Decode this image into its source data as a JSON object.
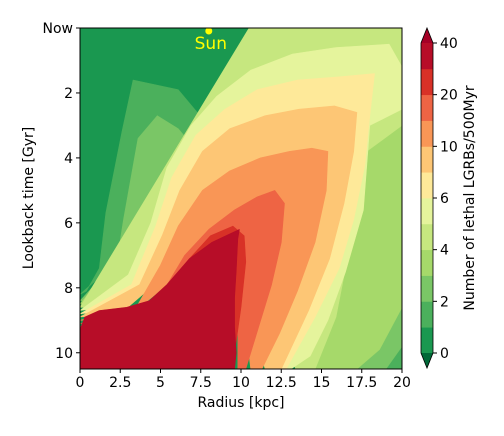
{
  "chart_data": {
    "type": "heatmap",
    "title": "",
    "xlabel": "Radius [kpc]",
    "ylabel": "Lookback time [Gyr]",
    "xlim": [
      0,
      20
    ],
    "ylim": [
      10.5,
      0
    ],
    "x_ticks": [
      {
        "value": 0,
        "label": "0"
      },
      {
        "value": 2.5,
        "label": "2.5"
      },
      {
        "value": 5,
        "label": "5"
      },
      {
        "value": 7.5,
        "label": "7.5"
      },
      {
        "value": 10,
        "label": "10"
      },
      {
        "value": 12.5,
        "label": "12.5"
      },
      {
        "value": 15,
        "label": "15"
      },
      {
        "value": 17.5,
        "label": "17.5"
      },
      {
        "value": 20,
        "label": "20"
      }
    ],
    "y_ticks": [
      {
        "value": 0,
        "label": "Now"
      },
      {
        "value": 2,
        "label": "2"
      },
      {
        "value": 4,
        "label": "4"
      },
      {
        "value": 6,
        "label": "6"
      },
      {
        "value": 8,
        "label": "8"
      },
      {
        "value": 10,
        "label": "10"
      }
    ],
    "colorbar": {
      "label": "Number of lethal LGRBs/500Myr",
      "levels": [
        0,
        1,
        2,
        3,
        4,
        5,
        6,
        8,
        10,
        15,
        20,
        30,
        40
      ],
      "colors": [
        "#1a9850",
        "#4bb05c",
        "#7ac666",
        "#a6d96a",
        "#c6e77f",
        "#e5f49c",
        "#fee999",
        "#fdc675",
        "#f99656",
        "#ee6444",
        "#d83127",
        "#b70d28"
      ],
      "ticks": [
        {
          "value": 0,
          "label": "0"
        },
        {
          "value": 2,
          "label": "2"
        },
        {
          "value": 4,
          "label": "4"
        },
        {
          "value": 6,
          "label": "6"
        },
        {
          "value": 10,
          "label": "10"
        },
        {
          "value": 20,
          "label": "20"
        },
        {
          "value": 40,
          "label": "40"
        }
      ]
    },
    "contours": [
      {
        "level": 1,
        "color": "#4bb05c",
        "points": [
          [
            18.8,
            0
          ],
          [
            20,
            0
          ],
          [
            20,
            10.5
          ],
          [
            18.8,
            10.5
          ],
          [
            16.5,
            9.8
          ],
          [
            14.6,
            8.4
          ],
          [
            12.7,
            6.7
          ],
          [
            10.8,
            5
          ],
          [
            8.3,
            3.2
          ],
          [
            6.1,
            1.9
          ],
          [
            3.3,
            1.6
          ],
          [
            2.6,
            3.2
          ],
          [
            1.6,
            5.7
          ],
          [
            1.2,
            7.4
          ],
          [
            0.4,
            8.1
          ],
          [
            0,
            8.2
          ]
        ]
      },
      {
        "level": 2,
        "color": "#7ac666",
        "points": [
          [
            15.6,
            0
          ],
          [
            20,
            0
          ],
          [
            20,
            9.8
          ],
          [
            19,
            10.5
          ],
          [
            15.4,
            10.5
          ],
          [
            14.4,
            9.8
          ],
          [
            12.7,
            8.3
          ],
          [
            10.9,
            6.6
          ],
          [
            8.3,
            4.4
          ],
          [
            6.1,
            3.1
          ],
          [
            4.8,
            2.7
          ],
          [
            3.6,
            3.4
          ],
          [
            2.7,
            5.9
          ],
          [
            2.2,
            7.5
          ],
          [
            0.8,
            8.4
          ],
          [
            0,
            8.4
          ]
        ]
      },
      {
        "level": 3,
        "color": "#a6d96a",
        "points": [
          [
            13.8,
            0
          ],
          [
            20,
            0
          ],
          [
            20,
            8.6
          ],
          [
            18.6,
            9.9
          ],
          [
            17.2,
            10.5
          ],
          [
            14.3,
            10.5
          ],
          [
            13.3,
            9.7
          ],
          [
            12.6,
            8.8
          ],
          [
            10.9,
            7.3
          ],
          [
            8.4,
            5.4
          ],
          [
            6.6,
            4.3
          ],
          [
            5.2,
            4.4
          ],
          [
            3.9,
            6.4
          ],
          [
            2.9,
            7.8
          ],
          [
            1,
            8.5
          ],
          [
            0,
            8.5
          ]
        ]
      },
      {
        "level": 4,
        "color": "#c6e77f",
        "points": [
          [
            10.5,
            0
          ],
          [
            20,
            0
          ],
          [
            20,
            3
          ],
          [
            17.8,
            3.8
          ],
          [
            16.8,
            6.6
          ],
          [
            15.9,
            8.9
          ],
          [
            14.6,
            10.5
          ],
          [
            13.4,
            10.5
          ],
          [
            12.2,
            8.9
          ],
          [
            10.6,
            7.5
          ],
          [
            8.6,
            6
          ],
          [
            6.4,
            5.4
          ],
          [
            4.7,
            6.4
          ],
          [
            3.2,
            8.1
          ],
          [
            1.3,
            8.6
          ],
          [
            0,
            8.6
          ]
        ]
      },
      {
        "level": 5,
        "color": "#e5f49c",
        "points": [
          [
            15.9,
            0.6
          ],
          [
            19.2,
            0.5
          ],
          [
            20,
            1.2
          ],
          [
            20,
            2.5
          ],
          [
            18,
            3
          ],
          [
            17.6,
            5.6
          ],
          [
            16.5,
            7.5
          ],
          [
            15.4,
            9
          ],
          [
            14.3,
            10.1
          ],
          [
            13.1,
            10.5
          ],
          [
            12.1,
            10.5
          ],
          [
            11.8,
            9.6
          ],
          [
            11.1,
            8.8
          ],
          [
            10.4,
            7.9
          ],
          [
            9.5,
            7.2
          ],
          [
            7.4,
            6.5
          ],
          [
            5.5,
            6.3
          ],
          [
            4.7,
            7.1
          ],
          [
            3.7,
            8.1
          ],
          [
            1.6,
            8.6
          ],
          [
            0,
            8.7
          ],
          [
            0,
            8.7
          ],
          [
            3,
            7.6
          ],
          [
            4.4,
            6
          ],
          [
            5.4,
            4.3
          ],
          [
            6.9,
            3
          ],
          [
            8.5,
            2.1
          ],
          [
            10.6,
            1.3
          ],
          [
            13.2,
            0.8
          ]
        ]
      },
      {
        "level": 6,
        "color": "#fee999",
        "points": [
          [
            16.2,
            1.5
          ],
          [
            18.3,
            1.4
          ],
          [
            18,
            2.7
          ],
          [
            17.7,
            4.2
          ],
          [
            17,
            5.9
          ],
          [
            16.1,
            7.4
          ],
          [
            14.6,
            8.9
          ],
          [
            12.8,
            10.5
          ],
          [
            11.8,
            10.5
          ],
          [
            11.3,
            9.2
          ],
          [
            10.5,
            8.1
          ],
          [
            9.8,
            7.5
          ],
          [
            8.2,
            6.9
          ],
          [
            6.4,
            6.6
          ],
          [
            5,
            7.1
          ],
          [
            3.8,
            8.2
          ],
          [
            1.8,
            8.7
          ],
          [
            0,
            8.8
          ],
          [
            0,
            8.8
          ],
          [
            3.2,
            7.9
          ],
          [
            4.7,
            6.1
          ],
          [
            5.7,
            4.6
          ],
          [
            7.2,
            3.3
          ],
          [
            9,
            2.5
          ],
          [
            11,
            1.9
          ],
          [
            13.5,
            1.6
          ]
        ]
      },
      {
        "level": 8,
        "color": "#fdc675",
        "points": [
          [
            15.8,
            2.4
          ],
          [
            17.2,
            2.6
          ],
          [
            17,
            3.8
          ],
          [
            16.4,
            5.4
          ],
          [
            15.5,
            7.1
          ],
          [
            14.2,
            8.7
          ],
          [
            12.5,
            10.5
          ],
          [
            11.5,
            10.5
          ],
          [
            10.9,
            9.4
          ],
          [
            10.1,
            8.4
          ],
          [
            9.2,
            7.7
          ],
          [
            7.6,
            7.3
          ],
          [
            5.9,
            7.3
          ],
          [
            4.6,
            7.9
          ],
          [
            2.5,
            8.8
          ],
          [
            0,
            8.9
          ],
          [
            0,
            8.9
          ],
          [
            3.7,
            7.9
          ],
          [
            5.1,
            6.4
          ],
          [
            6.2,
            5
          ],
          [
            7.6,
            3.8
          ],
          [
            9.3,
            3.1
          ],
          [
            11.5,
            2.7
          ],
          [
            13.6,
            2.5
          ]
        ]
      },
      {
        "level": 10,
        "color": "#f99656",
        "points": [
          [
            14.4,
            3.7
          ],
          [
            15.4,
            3.8
          ],
          [
            15.3,
            5
          ],
          [
            14.6,
            6.6
          ],
          [
            13.5,
            8.1
          ],
          [
            12.4,
            9.4
          ],
          [
            11.3,
            10.5
          ],
          [
            10.6,
            10.5
          ],
          [
            10.3,
            9.2
          ],
          [
            9.6,
            8.2
          ],
          [
            8.5,
            7.8
          ],
          [
            7.1,
            7.6
          ],
          [
            5.7,
            7.8
          ],
          [
            4.2,
            8.4
          ],
          [
            2.5,
            8.9
          ],
          [
            0,
            9
          ],
          [
            0,
            9
          ],
          [
            3.5,
            8.6
          ],
          [
            5,
            7.3
          ],
          [
            6.1,
            6.1
          ],
          [
            7.6,
            5
          ],
          [
            9.3,
            4.4
          ],
          [
            11.2,
            4
          ],
          [
            13,
            3.8
          ]
        ]
      },
      {
        "level": 15,
        "color": "#ee6444",
        "points": [
          [
            12.1,
            5
          ],
          [
            12.7,
            5.4
          ],
          [
            12.5,
            6.6
          ],
          [
            11.9,
            7.9
          ],
          [
            11.1,
            9.2
          ],
          [
            10.3,
            10.5
          ],
          [
            9.8,
            10.5
          ],
          [
            9.8,
            9.4
          ],
          [
            9.6,
            8.5
          ],
          [
            8.8,
            8
          ],
          [
            7.6,
            7.9
          ],
          [
            6.2,
            8.2
          ],
          [
            4.9,
            8.6
          ],
          [
            3.3,
            9
          ],
          [
            0,
            9.1
          ],
          [
            0,
            9.1
          ],
          [
            3.8,
            8.7
          ],
          [
            5.3,
            8
          ],
          [
            6.5,
            7
          ],
          [
            8,
            6.2
          ],
          [
            9.6,
            5.6
          ],
          [
            11,
            5.2
          ]
        ]
      },
      {
        "level": 20,
        "color": "#d83127",
        "points": [
          [
            9.5,
            6.1
          ],
          [
            10.2,
            6.4
          ],
          [
            10.3,
            7.2
          ],
          [
            10,
            8.6
          ],
          [
            9.6,
            10
          ],
          [
            9.5,
            10.5
          ],
          [
            9.5,
            10.5
          ],
          [
            9.5,
            9.5
          ],
          [
            9.3,
            8.7
          ],
          [
            8.4,
            8.3
          ],
          [
            7.2,
            8.2
          ],
          [
            5.9,
            8.5
          ],
          [
            4.6,
            8.8
          ],
          [
            2.8,
            9
          ],
          [
            0,
            9.2
          ],
          [
            0,
            9.2
          ],
          [
            2.6,
            8.8
          ],
          [
            4.2,
            8.6
          ],
          [
            5.5,
            7.9
          ],
          [
            6.8,
            7.1
          ],
          [
            8.1,
            6.4
          ]
        ]
      },
      {
        "level": 30,
        "color": "#b70d28",
        "points": [
          [
            9.9,
            6.2
          ],
          [
            9.8,
            6.5
          ],
          [
            9.7,
            7.5
          ],
          [
            9.6,
            8.3
          ],
          [
            9.6,
            9.2
          ],
          [
            9.7,
            10
          ],
          [
            9.6,
            10.5
          ],
          [
            0,
            10.5
          ],
          [
            0,
            9.3
          ],
          [
            0.3,
            8.9
          ],
          [
            1.2,
            8.7
          ],
          [
            2.9,
            8.6
          ],
          [
            4.3,
            8.4
          ],
          [
            5.4,
            7.9
          ],
          [
            6.8,
            7.1
          ],
          [
            8.2,
            6.6
          ]
        ]
      }
    ],
    "annotations": [
      {
        "text": "Sun",
        "x": 8,
        "y": 0.1,
        "color": "#ffff00"
      }
    ]
  }
}
